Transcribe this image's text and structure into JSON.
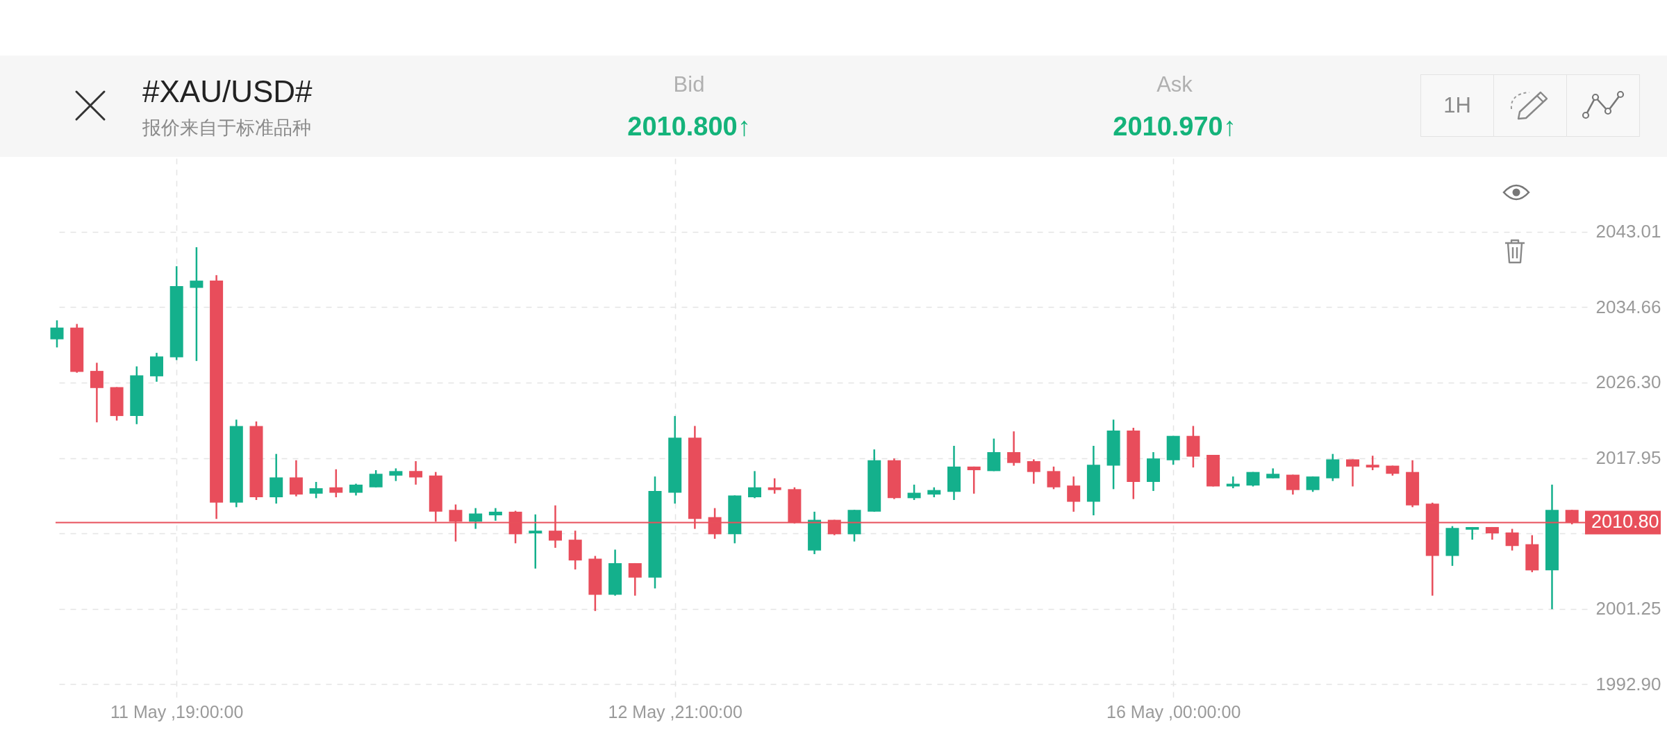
{
  "chart_data": {
    "type": "candlestick",
    "title": "#XAU/USD#",
    "subtitle": "报价来自于标准品种",
    "annotations": [
      "Bid",
      "2010.800↑",
      "Ask",
      "2010.970↑",
      "1H"
    ],
    "categories": [
      null,
      null,
      null,
      null,
      null,
      null,
      "11 May ,19:00:00",
      null,
      null,
      null,
      null,
      null,
      null,
      null,
      null,
      null,
      null,
      null,
      null,
      null,
      null,
      null,
      null,
      null,
      null,
      null,
      null,
      null,
      null,
      null,
      null,
      "12 May ,21:00:00",
      null,
      null,
      null,
      null,
      null,
      null,
      null,
      null,
      null,
      null,
      null,
      null,
      null,
      null,
      null,
      null,
      null,
      null,
      null,
      null,
      null,
      null,
      null,
      null,
      "16 May ,00:00:00",
      null,
      null,
      null,
      null,
      null,
      null,
      null,
      null,
      null,
      null,
      null,
      null,
      null,
      null,
      null,
      null,
      null,
      null,
      null,
      null
    ],
    "ohlc": [
      [
        2031.1,
        2033.2,
        2030.2,
        2032.4
      ],
      [
        2032.4,
        2032.8,
        2027.4,
        2027.5
      ],
      [
        2027.6,
        2028.5,
        2021.9,
        2025.7
      ],
      [
        2025.8,
        2025.8,
        2022.1,
        2022.6
      ],
      [
        2022.6,
        2028.1,
        2021.7,
        2027.1
      ],
      [
        2027.0,
        2029.6,
        2026.4,
        2029.2
      ],
      [
        2029.1,
        2039.2,
        2028.8,
        2037.0
      ],
      [
        2036.8,
        2041.3,
        2028.7,
        2037.6
      ],
      [
        2037.6,
        2038.2,
        2011.2,
        2013.0
      ],
      [
        2013.0,
        2022.2,
        2012.5,
        2021.5
      ],
      [
        2021.5,
        2022.0,
        2013.3,
        2013.6
      ],
      [
        2013.6,
        2018.4,
        2012.9,
        2015.8
      ],
      [
        2015.8,
        2017.7,
        2013.7,
        2013.9
      ],
      [
        2014.0,
        2015.3,
        2013.5,
        2014.6
      ],
      [
        2014.7,
        2016.7,
        2013.6,
        2014.1
      ],
      [
        2014.1,
        2015.1,
        2013.8,
        2015.0
      ],
      [
        2014.7,
        2016.6,
        2014.7,
        2016.2
      ],
      [
        2016.0,
        2016.8,
        2015.4,
        2016.5
      ],
      [
        2016.5,
        2017.6,
        2015.0,
        2015.8
      ],
      [
        2016.0,
        2016.4,
        2010.9,
        2012.0
      ],
      [
        2012.2,
        2012.8,
        2008.7,
        2010.9
      ],
      [
        2010.9,
        2012.4,
        2010.1,
        2011.8
      ],
      [
        2011.6,
        2012.4,
        2011.0,
        2012.0
      ],
      [
        2012.0,
        2012.1,
        2008.5,
        2009.5
      ],
      [
        2009.6,
        2011.7,
        2005.7,
        2009.9
      ],
      [
        2009.9,
        2012.7,
        2008.0,
        2008.8
      ],
      [
        2008.9,
        2009.9,
        2005.6,
        2006.6
      ],
      [
        2006.8,
        2007.1,
        2001.0,
        2002.8
      ],
      [
        2002.8,
        2007.8,
        2002.7,
        2006.3
      ],
      [
        2006.3,
        2006.3,
        2002.7,
        2004.7
      ],
      [
        2004.7,
        2015.9,
        2003.5,
        2014.3
      ],
      [
        2014.1,
        2022.6,
        2012.9,
        2020.2
      ],
      [
        2020.2,
        2021.5,
        2010.1,
        2011.2
      ],
      [
        2011.4,
        2012.4,
        2009.0,
        2009.5
      ],
      [
        2009.5,
        2013.8,
        2008.5,
        2013.8
      ],
      [
        2013.6,
        2016.5,
        2013.5,
        2014.7
      ],
      [
        2014.7,
        2015.7,
        2014.0,
        2014.4
      ],
      [
        2014.5,
        2014.7,
        2010.7,
        2010.8
      ],
      [
        2007.7,
        2012.0,
        2007.3,
        2011.1
      ],
      [
        2011.1,
        2011.1,
        2009.4,
        2009.5
      ],
      [
        2009.5,
        2012.2,
        2008.7,
        2012.2
      ],
      [
        2012.0,
        2018.9,
        2012.0,
        2017.7
      ],
      [
        2017.7,
        2017.9,
        2013.4,
        2013.5
      ],
      [
        2013.5,
        2015.0,
        2013.3,
        2014.1
      ],
      [
        2013.9,
        2014.7,
        2013.6,
        2014.4
      ],
      [
        2014.2,
        2019.3,
        2013.3,
        2017.0
      ],
      [
        2017.0,
        2017.0,
        2014.0,
        2016.6
      ],
      [
        2016.5,
        2020.1,
        2016.5,
        2018.6
      ],
      [
        2018.6,
        2020.9,
        2017.1,
        2017.4
      ],
      [
        2017.6,
        2017.8,
        2015.1,
        2016.4
      ],
      [
        2016.5,
        2017.0,
        2014.5,
        2014.7
      ],
      [
        2014.9,
        2015.9,
        2012.0,
        2013.1
      ],
      [
        2013.1,
        2019.3,
        2011.6,
        2017.2
      ],
      [
        2017.1,
        2022.2,
        2014.5,
        2021.0
      ],
      [
        2021.0,
        2021.3,
        2013.4,
        2015.3
      ],
      [
        2015.3,
        2018.6,
        2014.3,
        2017.9
      ],
      [
        2017.7,
        2020.4,
        2017.2,
        2020.4
      ],
      [
        2020.4,
        2021.5,
        2016.9,
        2018.1
      ],
      [
        2018.3,
        2018.3,
        2014.8,
        2014.8
      ],
      [
        2014.8,
        2015.9,
        2014.6,
        2015.1
      ],
      [
        2014.9,
        2016.4,
        2014.8,
        2016.4
      ],
      [
        2015.7,
        2016.8,
        2015.7,
        2016.2
      ],
      [
        2016.1,
        2016.1,
        2013.9,
        2014.4
      ],
      [
        2014.4,
        2015.9,
        2014.2,
        2015.9
      ],
      [
        2015.7,
        2018.4,
        2015.4,
        2017.8
      ],
      [
        2017.8,
        2017.8,
        2014.8,
        2017.0
      ],
      [
        2017.2,
        2018.2,
        2016.6,
        2016.9
      ],
      [
        2017.1,
        2017.1,
        2016.0,
        2016.2
      ],
      [
        2016.4,
        2017.7,
        2012.5,
        2012.7
      ],
      [
        2012.9,
        2013.0,
        2002.7,
        2007.1
      ],
      [
        2007.1,
        2010.4,
        2006.0,
        2010.2
      ],
      [
        2010.0,
        2010.3,
        2008.9,
        2010.3
      ],
      [
        2010.3,
        2010.3,
        2008.9,
        2009.6
      ],
      [
        2009.7,
        2010.1,
        2007.7,
        2008.2
      ],
      [
        2008.4,
        2009.4,
        2005.3,
        2005.5
      ],
      [
        2005.5,
        2015.0,
        2001.2,
        2012.2
      ],
      [
        2012.2,
        2012.2,
        2010.6,
        2010.8
      ]
    ],
    "colors": [
      "#14b08c",
      "#e84d5b",
      "#e84d5b",
      "#e84d5b",
      "#14b08c",
      "#14b08c",
      "#14b08c",
      "#14b08c",
      "#e84d5b",
      "#14b08c",
      "#e84d5b",
      "#14b08c",
      "#e84d5b",
      "#14b08c",
      "#e84d5b",
      "#14b08c",
      "#14b08c",
      "#14b08c",
      "#e84d5b",
      "#e84d5b",
      "#e84d5b",
      "#14b08c",
      "#14b08c",
      "#e84d5b",
      "#14b08c",
      "#e84d5b",
      "#e84d5b",
      "#e84d5b",
      "#14b08c",
      "#e84d5b",
      "#14b08c",
      "#14b08c",
      "#e84d5b",
      "#e84d5b",
      "#14b08c",
      "#14b08c",
      "#e84d5b",
      "#e84d5b",
      "#14b08c",
      "#e84d5b",
      "#14b08c",
      "#14b08c",
      "#e84d5b",
      "#14b08c",
      "#14b08c",
      "#14b08c",
      "#e84d5b",
      "#14b08c",
      "#e84d5b",
      "#e84d5b",
      "#e84d5b",
      "#e84d5b",
      "#14b08c",
      "#14b08c",
      "#e84d5b",
      "#14b08c",
      "#14b08c",
      "#e84d5b",
      "#e84d5b",
      "#14b08c",
      "#14b08c",
      "#14b08c",
      "#e84d5b",
      "#14b08c",
      "#14b08c",
      "#e84d5b",
      "#e84d5b",
      "#e84d5b",
      "#e84d5b",
      "#e84d5b",
      "#14b08c",
      "#14b08c",
      "#e84d5b",
      "#e84d5b",
      "#e84d5b",
      "#14b08c",
      "#e84d5b"
    ],
    "ylim": [
      1991.37,
      2051.15
    ],
    "yticks": [
      2043.01,
      2034.66,
      {
        "value": 2026.3,
        "label": "2026.30"
      },
      2017.95,
      {
        "value": 2009.6,
        "label": null
      },
      2001.25,
      {
        "value": 1992.9,
        "label": "1992.90"
      }
    ],
    "grid": true,
    "ref_lines": [
      {
        "axis": "y",
        "value": 2010.8,
        "label": "2010.80",
        "color": "#e8505b"
      }
    ]
  }
}
